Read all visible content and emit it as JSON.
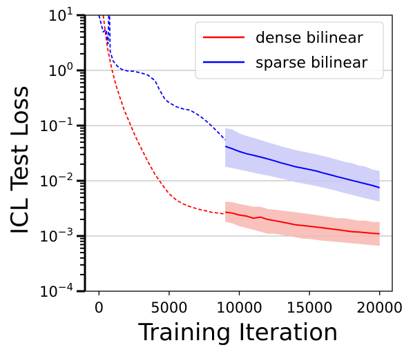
{
  "chart_data": {
    "type": "line",
    "xlabel": "Training Iteration",
    "ylabel": "ICL Test Loss",
    "xlim": [
      -1000,
      20900
    ],
    "ylim": [
      0.0001,
      10
    ],
    "yscale": "log",
    "xticks": [
      0,
      5000,
      10000,
      15000,
      20000
    ],
    "xtick_labels": [
      "0",
      "5000",
      "10000",
      "15000",
      "20000"
    ],
    "yticks": [
      0.0001,
      0.001,
      0.01,
      0.1,
      1,
      10
    ],
    "ytick_labels": [
      {
        "base": "10",
        "exp": "−4"
      },
      {
        "base": "10",
        "exp": "−3"
      },
      {
        "base": "10",
        "exp": "−2"
      },
      {
        "base": "10",
        "exp": "−1"
      },
      {
        "base": "10",
        "exp": "0"
      },
      {
        "base": "10",
        "exp": "1"
      }
    ],
    "grid": "horizontal at major y ticks",
    "legend_position": "top-right",
    "series": [
      {
        "name": "dense bilinear",
        "color": "#ff0000",
        "band_color": "#f7b6b0",
        "dashed_segment": {
          "x": [
            300,
            600,
            900,
            1200,
            1500,
            1800,
            2200,
            2600,
            3000,
            3500,
            4000,
            4500,
            5000,
            5500,
            6000,
            6500,
            7000,
            7500,
            8000,
            8500,
            9000
          ],
          "y": [
            10,
            2.6,
            1.1,
            0.55,
            0.32,
            0.19,
            0.11,
            0.063,
            0.039,
            0.022,
            0.013,
            0.0085,
            0.0058,
            0.0045,
            0.0038,
            0.0034,
            0.0031,
            0.0029,
            0.0027,
            0.0026,
            0.0025
          ]
        },
        "solid_segment": {
          "x": [
            9000,
            9500,
            10000,
            10500,
            11000,
            11500,
            12000,
            12500,
            13000,
            13500,
            14000,
            14500,
            15000,
            15500,
            16000,
            16500,
            17000,
            17500,
            18000,
            18500,
            19000,
            19500,
            20000
          ],
          "y": [
            0.0027,
            0.0026,
            0.0024,
            0.0023,
            0.0021,
            0.0022,
            0.002,
            0.0019,
            0.0018,
            0.0017,
            0.0016,
            0.00155,
            0.0015,
            0.00145,
            0.0014,
            0.00135,
            0.0013,
            0.00125,
            0.0012,
            0.00118,
            0.00115,
            0.00112,
            0.0011
          ],
          "band_low": [
            0.0018,
            0.0017,
            0.0015,
            0.0014,
            0.0013,
            0.0012,
            0.0011,
            0.0011,
            0.00105,
            0.001,
            0.00095,
            0.0009,
            0.00088,
            0.00085,
            0.00082,
            0.0008,
            0.00078,
            0.00076,
            0.00074,
            0.00072,
            0.0007,
            0.00068,
            0.00066
          ],
          "band_high": [
            0.0042,
            0.0041,
            0.0038,
            0.0036,
            0.0034,
            0.0034,
            0.0031,
            0.003,
            0.0029,
            0.0028,
            0.0027,
            0.0026,
            0.0025,
            0.0024,
            0.0023,
            0.0022,
            0.0021,
            0.0021,
            0.002,
            0.0019,
            0.0019,
            0.0018,
            0.0018
          ]
        }
      },
      {
        "name": "sparse bilinear",
        "color": "#0000ff",
        "band_color": "#c8c8f8",
        "dashed_segment": {
          "x": [
            0,
            300,
            500,
            650,
            700,
            750,
            800,
            1000,
            1300,
            1600,
            2000,
            2500,
            3000,
            3500,
            4000,
            4300,
            4700,
            5000,
            5500,
            6000,
            6500,
            7000,
            7500,
            8000,
            8500,
            9000
          ],
          "y": [
            10,
            5,
            5.5,
            3,
            10,
            10,
            2.2,
            1.5,
            1.2,
            1.05,
            0.98,
            0.96,
            0.9,
            0.82,
            0.65,
            0.45,
            0.3,
            0.26,
            0.22,
            0.2,
            0.19,
            0.16,
            0.13,
            0.1,
            0.075,
            0.055
          ]
        },
        "solid_segment": {
          "x": [
            9000,
            9500,
            10000,
            10500,
            11000,
            11500,
            12000,
            12500,
            13000,
            13500,
            14000,
            14500,
            15000,
            15500,
            16000,
            16500,
            17000,
            17500,
            18000,
            18500,
            19000,
            19500,
            20000
          ],
          "y": [
            0.042,
            0.038,
            0.034,
            0.031,
            0.029,
            0.027,
            0.025,
            0.023,
            0.021,
            0.0195,
            0.018,
            0.017,
            0.016,
            0.015,
            0.0138,
            0.0128,
            0.0118,
            0.011,
            0.0102,
            0.0095,
            0.0088,
            0.0082,
            0.0075
          ],
          "band_low": [
            0.018,
            0.017,
            0.016,
            0.015,
            0.014,
            0.0132,
            0.0125,
            0.0117,
            0.011,
            0.0102,
            0.0095,
            0.009,
            0.0085,
            0.008,
            0.0075,
            0.007,
            0.0065,
            0.006,
            0.0056,
            0.0052,
            0.0048,
            0.0045,
            0.0042
          ],
          "band_high": [
            0.09,
            0.085,
            0.072,
            0.065,
            0.06,
            0.055,
            0.05,
            0.046,
            0.042,
            0.039,
            0.036,
            0.034,
            0.032,
            0.03,
            0.028,
            0.026,
            0.024,
            0.022,
            0.021,
            0.019,
            0.018,
            0.016,
            0.015
          ]
        }
      }
    ]
  }
}
